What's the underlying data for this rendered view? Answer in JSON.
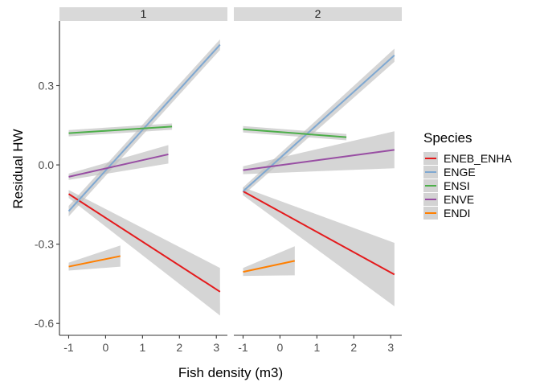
{
  "chart_data": {
    "type": "line",
    "title": "",
    "xlabel": "Fish density (m3)",
    "ylabel": "Residual HW",
    "xlim": [
      -1.25,
      3.3
    ],
    "ylim": [
      -0.645,
      0.545
    ],
    "x_ticks": [
      -1,
      0,
      1,
      2,
      3
    ],
    "x_tick_labels": [
      "-1",
      "0",
      "1",
      "2",
      "3"
    ],
    "y_ticks": [
      0.3,
      0.0,
      -0.3,
      -0.6
    ],
    "y_tick_labels": [
      "0.3",
      "0.0",
      "-0.3",
      "-0.6"
    ],
    "grid": false,
    "legend": {
      "title": "Species",
      "position": "right",
      "items": [
        {
          "label": "ENEB_ENHA",
          "color": "#E41A1C"
        },
        {
          "label": "ENGE",
          "color": "#7FA8D1"
        },
        {
          "label": "ENSI",
          "color": "#4DAF4A"
        },
        {
          "label": "ENVE",
          "color": "#984EA3"
        },
        {
          "label": "ENDI",
          "color": "#FF7F00"
        }
      ]
    },
    "panels": [
      {
        "label": "1",
        "series": [
          {
            "name": "ENEB_ENHA",
            "color": "#E41A1C",
            "x": [
              -1.0,
              3.1
            ],
            "y": [
              -0.11,
              -0.48
            ],
            "ci_half_start": 0.015,
            "ci_half_end": 0.09
          },
          {
            "name": "ENGE",
            "color": "#7FA8D1",
            "x": [
              -1.0,
              3.1
            ],
            "y": [
              -0.175,
              0.455
            ],
            "ci_half_start": 0.02,
            "ci_half_end": 0.02
          },
          {
            "name": "ENSI",
            "color": "#4DAF4A",
            "x": [
              -1.0,
              1.8
            ],
            "y": [
              0.12,
              0.145
            ],
            "ci_half_start": 0.012,
            "ci_half_end": 0.012
          },
          {
            "name": "ENVE",
            "color": "#984EA3",
            "x": [
              -1.0,
              1.7
            ],
            "y": [
              -0.045,
              0.04
            ],
            "ci_half_start": 0.012,
            "ci_half_end": 0.035
          },
          {
            "name": "ENDI",
            "color": "#FF7F00",
            "x": [
              -1.0,
              0.4
            ],
            "y": [
              -0.385,
              -0.345
            ],
            "ci_half_start": 0.015,
            "ci_half_end": 0.04
          }
        ]
      },
      {
        "label": "2",
        "series": [
          {
            "name": "ENEB_ENHA",
            "color": "#E41A1C",
            "x": [
              -1.0,
              3.1
            ],
            "y": [
              -0.1,
              -0.415
            ],
            "ci_half_start": 0.015,
            "ci_half_end": 0.12
          },
          {
            "name": "ENGE",
            "color": "#7FA8D1",
            "x": [
              -1.0,
              3.1
            ],
            "y": [
              -0.1,
              0.415
            ],
            "ci_half_start": 0.015,
            "ci_half_end": 0.025
          },
          {
            "name": "ENSI",
            "color": "#4DAF4A",
            "x": [
              -1.0,
              1.8
            ],
            "y": [
              0.135,
              0.105
            ],
            "ci_half_start": 0.012,
            "ci_half_end": 0.012
          },
          {
            "name": "ENVE",
            "color": "#984EA3",
            "x": [
              -1.0,
              3.1
            ],
            "y": [
              -0.02,
              0.057
            ],
            "ci_half_start": 0.015,
            "ci_half_end": 0.07
          },
          {
            "name": "ENDI",
            "color": "#FF7F00",
            "x": [
              -1.0,
              0.4
            ],
            "y": [
              -0.405,
              -0.363
            ],
            "ci_half_start": 0.015,
            "ci_half_end": 0.055
          }
        ]
      }
    ]
  }
}
